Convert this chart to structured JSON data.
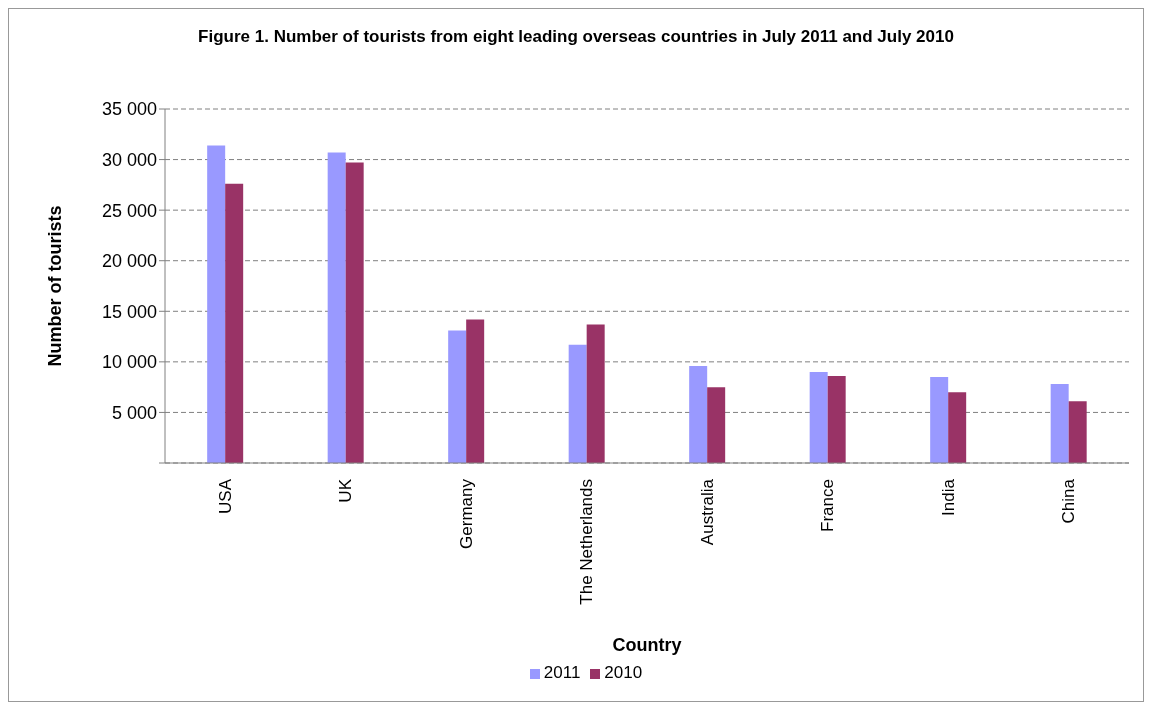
{
  "chart_data": {
    "type": "bar",
    "title": "Figure 1. Number of tourists from eight leading overseas countries in July 2011 and July 2010",
    "xlabel": "Country",
    "ylabel": "Number of tourists",
    "categories": [
      "USA",
      "UK",
      "Germany",
      "The Netherlands",
      "Australia",
      "France",
      "India",
      "China"
    ],
    "series": [
      {
        "name": "2011",
        "color": "#9999ff",
        "values": [
          31400,
          30700,
          13100,
          11700,
          9600,
          9000,
          8500,
          7800
        ]
      },
      {
        "name": "2010",
        "color": "#993366",
        "values": [
          27600,
          29700,
          14200,
          13700,
          7500,
          8600,
          7000,
          6100
        ]
      }
    ],
    "ylim": [
      0,
      35000
    ],
    "yticks": [
      {
        "value": 0,
        "label": null
      },
      {
        "value": 5000,
        "label": "5 000"
      },
      {
        "value": 10000,
        "label": "10 000"
      },
      {
        "value": 15000,
        "label": "15 000"
      },
      {
        "value": 20000,
        "label": "20 000"
      },
      {
        "value": 25000,
        "label": "25 000"
      },
      {
        "value": 30000,
        "label": "30 000"
      },
      {
        "value": 35000,
        "label": "35 000"
      }
    ],
    "grid": "y",
    "legend": "bottom"
  }
}
